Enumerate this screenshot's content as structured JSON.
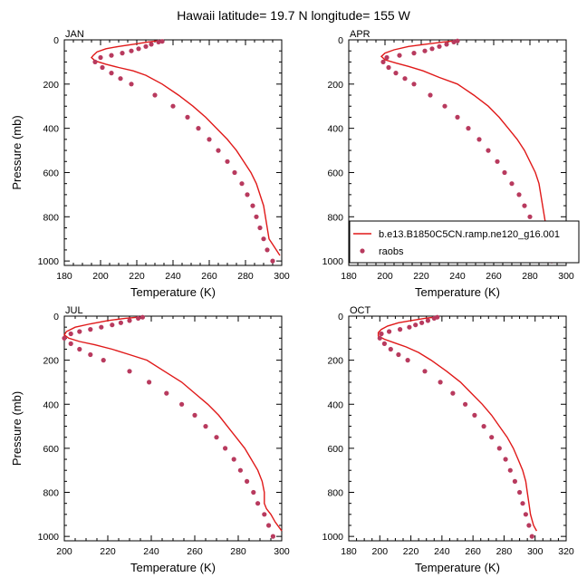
{
  "title": "Hawaii  latitude= 19.7 N longitude= 155 W",
  "colors": {
    "model": "#e01919",
    "raobs": "#b83a5e"
  },
  "legend": {
    "placement": "lower-right of APR panel",
    "entries": [
      {
        "name": "b.e13.B1850C5CN.ramp.ne120_g16.001",
        "kind": "line"
      },
      {
        "name": "raobs",
        "kind": "marker"
      }
    ]
  },
  "chart_data": [
    {
      "type": "line",
      "panel": "JAN",
      "xlabel": "Temperature (K)",
      "ylabel": "Pressure (mb)",
      "xlim": [
        180,
        300
      ],
      "ylim": [
        0,
        1020
      ],
      "y_inverted": true,
      "xticks": [
        180,
        200,
        220,
        240,
        260,
        280,
        300
      ],
      "yticks": [
        0,
        200,
        400,
        600,
        800,
        1000
      ],
      "series": [
        {
          "name": "b.e13.B1850C5CN.ramp.ne120_g16.001",
          "style": "line",
          "points": [
            [
              231,
              5
            ],
            [
              226,
              10
            ],
            [
              218,
              20
            ],
            [
              210,
              30
            ],
            [
              203,
              40
            ],
            [
              198,
              55
            ],
            [
              196,
              70
            ],
            [
              195,
              80
            ],
            [
              197,
              95
            ],
            [
              203,
              110
            ],
            [
              210,
              125
            ],
            [
              218,
              140
            ],
            [
              225,
              160
            ],
            [
              234,
              200
            ],
            [
              243,
              250
            ],
            [
              251,
              300
            ],
            [
              258,
              350
            ],
            [
              264,
              400
            ],
            [
              270,
              450
            ],
            [
              275,
              500
            ],
            [
              279,
              550
            ],
            [
              283,
              600
            ],
            [
              286,
              650
            ],
            [
              288,
              700
            ],
            [
              290,
              750
            ],
            [
              291,
              800
            ],
            [
              292,
              850
            ],
            [
              293,
              900
            ],
            [
              295,
              925
            ],
            [
              297,
              950
            ],
            [
              299,
              975
            ]
          ]
        },
        {
          "name": "raobs",
          "style": "marker",
          "points": [
            [
              234,
              7
            ],
            [
              232,
              10
            ],
            [
              228,
              20
            ],
            [
              225,
              30
            ],
            [
              221,
              40
            ],
            [
              217,
              50
            ],
            [
              212,
              60
            ],
            [
              206,
              70
            ],
            [
              200,
              80
            ],
            [
              197,
              100
            ],
            [
              201,
              125
            ],
            [
              206,
              150
            ],
            [
              211,
              175
            ],
            [
              217,
              200
            ],
            [
              230,
              250
            ],
            [
              240,
              300
            ],
            [
              248,
              350
            ],
            [
              254,
              400
            ],
            [
              260,
              450
            ],
            [
              265,
              500
            ],
            [
              270,
              550
            ],
            [
              274,
              600
            ],
            [
              278,
              650
            ],
            [
              281,
              700
            ],
            [
              284,
              750
            ],
            [
              286,
              800
            ],
            [
              288,
              850
            ],
            [
              290,
              900
            ],
            [
              292,
              950
            ],
            [
              295,
              1000
            ]
          ]
        }
      ]
    },
    {
      "type": "line",
      "panel": "APR",
      "xlabel": "Temperature (K)",
      "ylabel": "",
      "xlim": [
        180,
        300
      ],
      "ylim": [
        0,
        1020
      ],
      "y_inverted": true,
      "xticks": [
        180,
        200,
        220,
        240,
        260,
        280,
        300
      ],
      "yticks": [
        0,
        200,
        400,
        600,
        800,
        1000
      ],
      "series": [
        {
          "name": "b.e13.B1850C5CN.ramp.ne120_g16.001",
          "style": "line",
          "points": [
            [
              238,
              5
            ],
            [
              232,
              10
            ],
            [
              222,
              20
            ],
            [
              213,
              30
            ],
            [
              205,
              45
            ],
            [
              200,
              60
            ],
            [
              198,
              75
            ],
            [
              200,
              90
            ],
            [
              206,
              105
            ],
            [
              213,
              120
            ],
            [
              221,
              140
            ],
            [
              230,
              170
            ],
            [
              240,
              200
            ],
            [
              249,
              250
            ],
            [
              257,
              300
            ],
            [
              263,
              350
            ],
            [
              268,
              400
            ],
            [
              273,
              450
            ],
            [
              277,
              500
            ],
            [
              280,
              550
            ],
            [
              283,
              600
            ],
            [
              285,
              650
            ],
            [
              286,
              700
            ],
            [
              287,
              750
            ],
            [
              288,
              800
            ],
            [
              289,
              850
            ],
            [
              291,
              900
            ],
            [
              294,
              935
            ],
            [
              297,
              965
            ],
            [
              298,
              980
            ]
          ]
        },
        {
          "name": "raobs",
          "style": "marker",
          "points": [
            [
              240,
              5
            ],
            [
              238,
              10
            ],
            [
              234,
              20
            ],
            [
              230,
              30
            ],
            [
              226,
              40
            ],
            [
              222,
              50
            ],
            [
              216,
              60
            ],
            [
              208,
              70
            ],
            [
              201,
              80
            ],
            [
              199,
              100
            ],
            [
              202,
              125
            ],
            [
              206,
              150
            ],
            [
              211,
              175
            ],
            [
              216,
              200
            ],
            [
              225,
              250
            ],
            [
              233,
              300
            ],
            [
              240,
              350
            ],
            [
              246,
              400
            ],
            [
              252,
              450
            ],
            [
              257,
              500
            ],
            [
              262,
              550
            ],
            [
              266,
              600
            ],
            [
              270,
              650
            ],
            [
              274,
              700
            ],
            [
              277,
              750
            ],
            [
              280,
              800
            ],
            [
              283,
              850
            ],
            [
              286,
              900
            ],
            [
              289,
              950
            ],
            [
              292,
              1000
            ]
          ]
        }
      ]
    },
    {
      "type": "line",
      "panel": "JUL",
      "xlabel": "Temperature (K)",
      "ylabel": "Pressure (mb)",
      "xlim": [
        200,
        300
      ],
      "ylim": [
        0,
        1020
      ],
      "y_inverted": true,
      "xticks": [
        200,
        220,
        240,
        260,
        280,
        300
      ],
      "yticks": [
        0,
        200,
        400,
        600,
        800,
        1000
      ],
      "series": [
        {
          "name": "b.e13.B1850C5CN.ramp.ne120_g16.001",
          "style": "line",
          "points": [
            [
              234,
              5
            ],
            [
              228,
              10
            ],
            [
              220,
              20
            ],
            [
              212,
              35
            ],
            [
              205,
              50
            ],
            [
              201,
              70
            ],
            [
              200,
              85
            ],
            [
              202,
              100
            ],
            [
              207,
              115
            ],
            [
              214,
              130
            ],
            [
              222,
              150
            ],
            [
              230,
              175
            ],
            [
              238,
              200
            ],
            [
              246,
              250
            ],
            [
              254,
              300
            ],
            [
              260,
              350
            ],
            [
              266,
              400
            ],
            [
              271,
              450
            ],
            [
              275,
              500
            ],
            [
              279,
              550
            ],
            [
              283,
              600
            ],
            [
              286,
              650
            ],
            [
              289,
              700
            ],
            [
              291,
              750
            ],
            [
              292,
              800
            ],
            [
              292,
              850
            ],
            [
              293,
              875
            ],
            [
              295,
              900
            ],
            [
              297,
              935
            ],
            [
              300,
              975
            ]
          ]
        },
        {
          "name": "raobs",
          "style": "marker",
          "points": [
            [
              236,
              5
            ],
            [
              234,
              10
            ],
            [
              230,
              20
            ],
            [
              226,
              30
            ],
            [
              222,
              40
            ],
            [
              217,
              50
            ],
            [
              212,
              60
            ],
            [
              207,
              70
            ],
            [
              203,
              80
            ],
            [
              200,
              100
            ],
            [
              203,
              125
            ],
            [
              207,
              150
            ],
            [
              212,
              175
            ],
            [
              218,
              200
            ],
            [
              230,
              250
            ],
            [
              239,
              300
            ],
            [
              247,
              350
            ],
            [
              254,
              400
            ],
            [
              260,
              450
            ],
            [
              265,
              500
            ],
            [
              270,
              550
            ],
            [
              274,
              600
            ],
            [
              278,
              650
            ],
            [
              281,
              700
            ],
            [
              284,
              750
            ],
            [
              287,
              800
            ],
            [
              289,
              850
            ],
            [
              292,
              900
            ],
            [
              294,
              950
            ],
            [
              296,
              1000
            ]
          ]
        }
      ]
    },
    {
      "type": "line",
      "panel": "OCT",
      "xlabel": "Temperature (K)",
      "ylabel": "",
      "xlim": [
        180,
        320
      ],
      "ylim": [
        0,
        1020
      ],
      "y_inverted": true,
      "xticks": [
        180,
        200,
        220,
        240,
        260,
        280,
        300,
        320
      ],
      "yticks": [
        0,
        200,
        400,
        600,
        800,
        1000
      ],
      "series": [
        {
          "name": "b.e13.B1850C5CN.ramp.ne120_g16.001",
          "style": "line",
          "points": [
            [
              235,
              5
            ],
            [
              229,
              10
            ],
            [
              220,
              20
            ],
            [
              212,
              30
            ],
            [
              205,
              45
            ],
            [
              201,
              60
            ],
            [
              199,
              75
            ],
            [
              199,
              90
            ],
            [
              203,
              105
            ],
            [
              209,
              120
            ],
            [
              217,
              140
            ],
            [
              225,
              165
            ],
            [
              233,
              200
            ],
            [
              243,
              250
            ],
            [
              252,
              300
            ],
            [
              259,
              350
            ],
            [
              266,
              400
            ],
            [
              272,
              450
            ],
            [
              277,
              500
            ],
            [
              282,
              550
            ],
            [
              286,
              600
            ],
            [
              289,
              650
            ],
            [
              292,
              700
            ],
            [
              294,
              750
            ],
            [
              295,
              800
            ],
            [
              296,
              850
            ],
            [
              297,
              900
            ],
            [
              298,
              925
            ],
            [
              299,
              950
            ],
            [
              301,
              975
            ]
          ]
        },
        {
          "name": "raobs",
          "style": "marker",
          "points": [
            [
              237,
              5
            ],
            [
              235,
              10
            ],
            [
              231,
              20
            ],
            [
              227,
              30
            ],
            [
              223,
              40
            ],
            [
              219,
              50
            ],
            [
              213,
              60
            ],
            [
              206,
              70
            ],
            [
              201,
              80
            ],
            [
              200,
              100
            ],
            [
              203,
              125
            ],
            [
              207,
              150
            ],
            [
              212,
              175
            ],
            [
              218,
              200
            ],
            [
              229,
              250
            ],
            [
              239,
              300
            ],
            [
              247,
              350
            ],
            [
              255,
              400
            ],
            [
              261,
              450
            ],
            [
              267,
              500
            ],
            [
              272,
              550
            ],
            [
              277,
              600
            ],
            [
              281,
              650
            ],
            [
              284,
              700
            ],
            [
              287,
              750
            ],
            [
              290,
              800
            ],
            [
              292,
              850
            ],
            [
              294,
              900
            ],
            [
              296,
              950
            ],
            [
              298,
              1000
            ]
          ]
        }
      ]
    }
  ]
}
